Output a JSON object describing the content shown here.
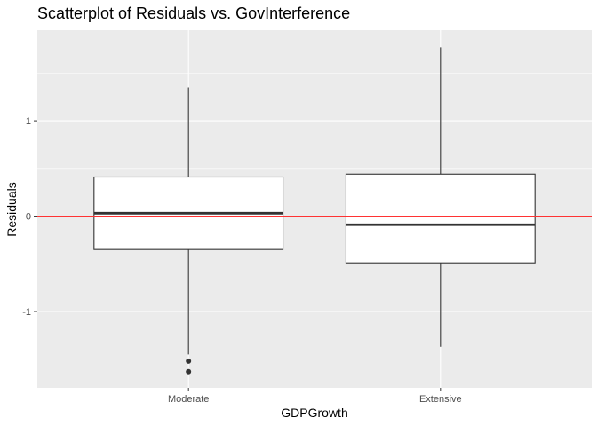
{
  "chart_data": {
    "type": "boxplot",
    "title": "Scatterplot of Residuals vs. GovInterference",
    "xlabel": "GDPGrowth",
    "ylabel": "Residuals",
    "categories": [
      "Moderate",
      "Extensive"
    ],
    "ylim": [
      -1.8,
      1.95
    ],
    "yticks": [
      -1,
      0,
      1
    ],
    "ytick_labels": [
      "-1",
      "0",
      "1"
    ],
    "boxes": [
      {
        "category": "Moderate",
        "whisker_low": -1.45,
        "q1": -0.35,
        "median": 0.03,
        "q3": 0.41,
        "whisker_high": 1.35,
        "outliers": [
          -1.52,
          -1.63
        ]
      },
      {
        "category": "Extensive",
        "whisker_low": -1.37,
        "q1": -0.49,
        "median": -0.09,
        "q3": 0.44,
        "whisker_high": 1.77,
        "outliers": []
      }
    ],
    "reference_line": {
      "y": 0,
      "color": "#ff3333"
    },
    "grid": true,
    "colors": {
      "panel": "#ebebeb",
      "grid": "#ffffff",
      "box_fill": "#ffffff",
      "box_line": "#333333"
    }
  }
}
